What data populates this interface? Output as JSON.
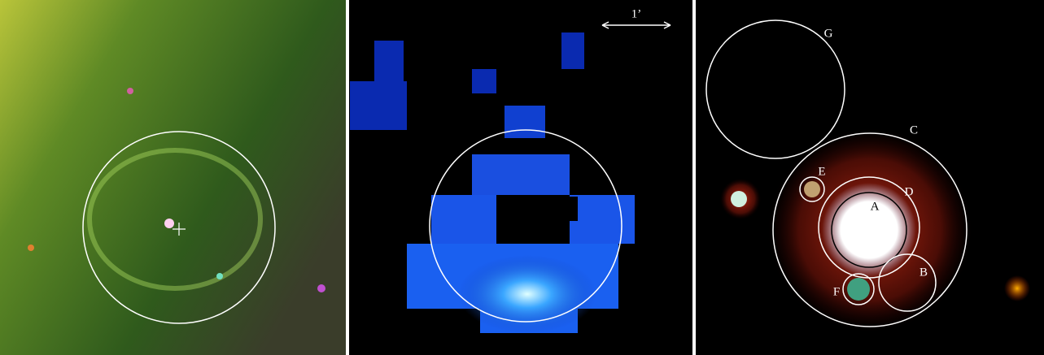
{
  "scale_bar": {
    "label": "1’"
  },
  "regions": [
    {
      "label": "A"
    },
    {
      "label": "B"
    },
    {
      "label": "C"
    },
    {
      "label": "D"
    },
    {
      "label": "E"
    },
    {
      "label": "F"
    },
    {
      "label": "G"
    }
  ]
}
